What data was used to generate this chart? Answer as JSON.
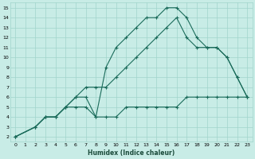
{
  "xlabel": "Humidex (Indice chaleur)",
  "bg_color": "#c8ece6",
  "grid_color": "#a0d4cc",
  "line_color": "#1a6b5a",
  "xlim": [
    -0.5,
    23.5
  ],
  "ylim": [
    1.5,
    15.5
  ],
  "xticks": [
    0,
    1,
    2,
    3,
    4,
    5,
    6,
    7,
    8,
    9,
    10,
    11,
    12,
    13,
    14,
    15,
    16,
    17,
    18,
    19,
    20,
    21,
    22,
    23
  ],
  "yticks": [
    2,
    3,
    4,
    5,
    6,
    7,
    8,
    9,
    10,
    11,
    12,
    13,
    14,
    15
  ],
  "line1_x": [
    0,
    2,
    3,
    4,
    5,
    6,
    7,
    8,
    9,
    10,
    11,
    12,
    13,
    14,
    15,
    16,
    17,
    18,
    19,
    20,
    21,
    22,
    23
  ],
  "line1_y": [
    2,
    3,
    4,
    4,
    5,
    6,
    6,
    4,
    9,
    11,
    12,
    13,
    14,
    14,
    15,
    15,
    14,
    12,
    11,
    11,
    10,
    8,
    6
  ],
  "line2_x": [
    0,
    2,
    3,
    4,
    5,
    6,
    7,
    8,
    9,
    10,
    11,
    12,
    13,
    14,
    15,
    16,
    17,
    18,
    19,
    20,
    21,
    22,
    23
  ],
  "line2_y": [
    2,
    3,
    4,
    4,
    5,
    6,
    7,
    7,
    7,
    8,
    9,
    10,
    11,
    12,
    13,
    14,
    12,
    11,
    11,
    11,
    10,
    8,
    6
  ],
  "line3_x": [
    0,
    2,
    3,
    4,
    5,
    6,
    7,
    8,
    9,
    10,
    11,
    12,
    13,
    14,
    15,
    16,
    17,
    18,
    19,
    20,
    21,
    22,
    23
  ],
  "line3_y": [
    2,
    3,
    4,
    4,
    5,
    5,
    5,
    4,
    4,
    4,
    5,
    5,
    5,
    5,
    5,
    5,
    6,
    6,
    6,
    6,
    6,
    6,
    6
  ]
}
